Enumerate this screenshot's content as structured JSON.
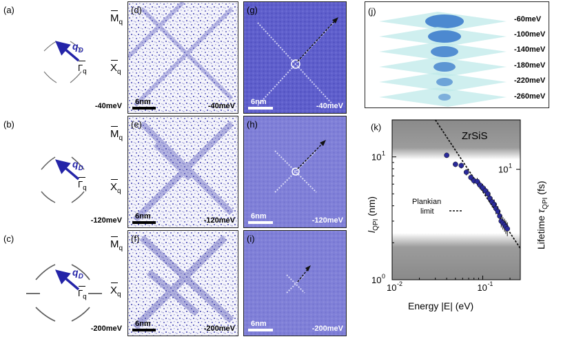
{
  "panels_a_c": [
    {
      "label": "(a)",
      "energy": "-40meV"
    },
    {
      "label": "(b)",
      "energy": "-120meV"
    },
    {
      "label": "(c)",
      "energy": "-200meV"
    }
  ],
  "panels_d_f": [
    {
      "label": "(d)",
      "energy": "-40meV",
      "scale": "6nm"
    },
    {
      "label": "(e)",
      "energy": "-120meV",
      "scale": "6nm"
    },
    {
      "label": "(f)",
      "energy": "-200meV",
      "scale": "6nm"
    }
  ],
  "panels_g_i": [
    {
      "label": "(g)",
      "energy": "-40meV",
      "scale": "6nm"
    },
    {
      "label": "(h)",
      "energy": "-120meV",
      "scale": "6nm"
    },
    {
      "label": "(i)",
      "energy": "-200meV",
      "scale": "6nm"
    }
  ],
  "symbols": {
    "M": "M",
    "X": "X",
    "Gamma": "Γ",
    "sub_q": "q",
    "qd_main": "q",
    "qd_sub": "D"
  },
  "panel_j": {
    "label": "(j)",
    "energies": [
      "-60meV",
      "-100meV",
      "-140meV",
      "-180meV",
      "-220meV",
      "-260meV"
    ]
  },
  "colors": {
    "arrow_blue": "#2424a8",
    "spectral_blue": "#4a4ac0",
    "gray_band": "#8a8a8a",
    "marker": "#2a2a9a"
  },
  "chart_data": {
    "type": "scatter",
    "label": "(k)",
    "title": "ZrSiS",
    "xlabel": "Energy |E| (eV)",
    "ylabel_left": "l_QPI (nm)",
    "ylabel_left_main": "l",
    "ylabel_left_sub": "QPI",
    "ylabel_left_unit": "(nm)",
    "ylabel_right": "Lifetime τ_QPI (fs)",
    "ylabel_right_main": "Lifetime ",
    "ylabel_right_tau": "τ",
    "ylabel_right_sub": "QPI",
    "ylabel_right_unit": "(fs)",
    "x_scale": "log",
    "y_scale": "log",
    "xlim": [
      0.01,
      0.26
    ],
    "ylim": [
      1,
      20
    ],
    "x_ticks": [
      {
        "value": 0.01,
        "base": "10",
        "exp": "-2"
      },
      {
        "value": 0.1,
        "base": "10",
        "exp": "-1"
      }
    ],
    "y_ticks": [
      {
        "value": 1,
        "base": "10",
        "exp": "0"
      },
      {
        "value": 10,
        "base": "10",
        "exp": "1"
      }
    ],
    "right_ticks": [
      {
        "value": 10,
        "base": "10",
        "exp": "1"
      }
    ],
    "legend_label": [
      "Plankian",
      "limit"
    ],
    "series": [
      {
        "name": "l_QPI",
        "x": [
          0.04,
          0.05,
          0.058,
          0.066,
          0.074,
          0.08,
          0.087,
          0.093,
          0.1,
          0.107,
          0.114,
          0.12,
          0.127,
          0.134,
          0.14,
          0.147,
          0.154,
          0.16,
          0.167,
          0.174,
          0.18,
          0.187
        ],
        "y": [
          10.3,
          8.7,
          8.5,
          7.5,
          6.8,
          6.4,
          6.3,
          5.9,
          5.6,
          5.3,
          5.0,
          4.6,
          4.3,
          4.1,
          3.8,
          3.6,
          3.3,
          3.0,
          2.9,
          2.8,
          2.7,
          2.6
        ]
      },
      {
        "name": "Plankian limit",
        "style": "dashed",
        "x": [
          0.03,
          0.26
        ],
        "y": [
          20,
          1.8
        ]
      }
    ]
  }
}
